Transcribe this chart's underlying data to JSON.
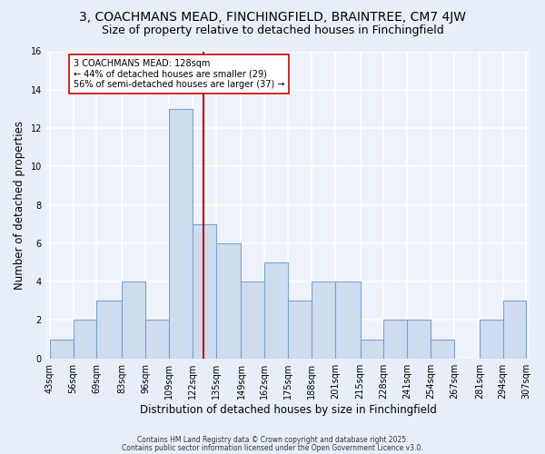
{
  "title": "3, COACHMANS MEAD, FINCHINGFIELD, BRAINTREE, CM7 4JW",
  "subtitle": "Size of property relative to detached houses in Finchingfield",
  "xlabel": "Distribution of detached houses by size in Finchingfield",
  "ylabel": "Number of detached properties",
  "bins": [
    43,
    56,
    69,
    83,
    96,
    109,
    122,
    135,
    149,
    162,
    175,
    188,
    201,
    215,
    228,
    241,
    254,
    267,
    281,
    294,
    307
  ],
  "counts": [
    1,
    2,
    3,
    4,
    2,
    13,
    7,
    6,
    4,
    5,
    3,
    4,
    4,
    1,
    2,
    2,
    1,
    0,
    2,
    3
  ],
  "bar_color": "#cfdcef",
  "bar_edge_color": "#7aa3cc",
  "vline_x": 128,
  "vline_color": "#bb0000",
  "annotation_text": "3 COACHMANS MEAD: 128sqm\n← 44% of detached houses are smaller (29)\n56% of semi-detached houses are larger (37) →",
  "annotation_box_color": "#ffffff",
  "annotation_box_edge": "#cc0000",
  "ylim": [
    0,
    16
  ],
  "yticks": [
    0,
    2,
    4,
    6,
    8,
    10,
    12,
    14,
    16
  ],
  "tick_labels": [
    "43sqm",
    "56sqm",
    "69sqm",
    "83sqm",
    "96sqm",
    "109sqm",
    "122sqm",
    "135sqm",
    "149sqm",
    "162sqm",
    "175sqm",
    "188sqm",
    "201sqm",
    "215sqm",
    "228sqm",
    "241sqm",
    "254sqm",
    "267sqm",
    "281sqm",
    "294sqm",
    "307sqm"
  ],
  "footer1": "Contains HM Land Registry data © Crown copyright and database right 2025.",
  "footer2": "Contains public sector information licensed under the Open Government Licence v3.0.",
  "bg_color": "#e8eef8",
  "plot_bg_color": "#eef3fb",
  "grid_color": "#ffffff",
  "title_fontsize": 10,
  "subtitle_fontsize": 9,
  "axis_label_fontsize": 8.5,
  "tick_fontsize": 7,
  "annot_fontsize": 7,
  "footer_fontsize": 5.5
}
